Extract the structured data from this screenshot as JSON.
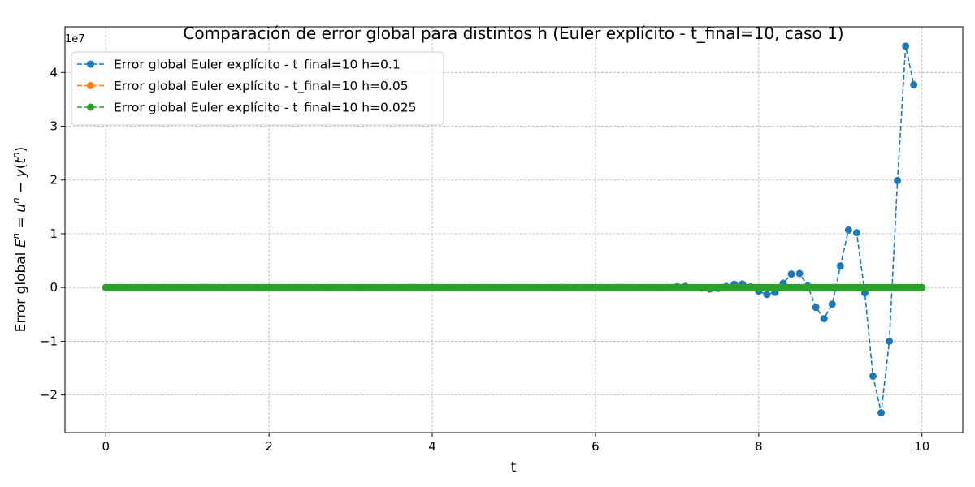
{
  "chart_data": {
    "type": "line",
    "title": "Comparación de error global para distintos h (Euler explícito - t_final=10, caso 1)",
    "xlabel": "t",
    "ylabel": "Error global E^n = u^n − y(t^n)",
    "ylabel_parts": {
      "prefix": "Error global ",
      "E": "E",
      "n": "n",
      "eq": " = ",
      "u": "u",
      "minus": " − ",
      "y": "y",
      "lparen": "(",
      "t": "t",
      "rparen": ")"
    },
    "y_offset_label": "1e7",
    "y_scale": 10000000,
    "xlim": [
      -0.5,
      10.5
    ],
    "ylim": [
      -27000000,
      48500000
    ],
    "x_ticks": [
      0,
      2,
      4,
      6,
      8,
      10
    ],
    "x_tick_labels": [
      "0",
      "2",
      "4",
      "6",
      "8",
      "10"
    ],
    "y_ticks": [
      -20000000,
      -10000000,
      0,
      10000000,
      20000000,
      30000000,
      40000000
    ],
    "y_tick_labels": [
      "−2",
      "−1",
      "0",
      "1",
      "2",
      "3",
      "4"
    ],
    "grid": true,
    "legend_position": "top-left",
    "x_range": [
      0,
      10
    ],
    "series": [
      {
        "name": "Error global Euler explícito - t_final=10 h=0.1",
        "color": "#1f77b4",
        "h": 0.1,
        "x": [
          7.0,
          7.1,
          7.2,
          7.3,
          7.4,
          7.5,
          7.6,
          7.7,
          7.8,
          7.9,
          8.0,
          8.1,
          8.2,
          8.3,
          8.4,
          8.5,
          8.6,
          8.7,
          8.8,
          8.9,
          9.0,
          9.1,
          9.2,
          9.3,
          9.4,
          9.5,
          9.6,
          9.7,
          9.8,
          9.9
        ],
        "y": [
          150000,
          200000,
          0,
          -100000,
          -300000,
          -150000,
          200000,
          600000,
          650000,
          100000,
          -700000,
          -1300000,
          -900000,
          800000,
          2500000,
          2600000,
          300000,
          -3700000,
          -5800000,
          -3100000,
          4000000,
          10700000,
          10200000,
          -1000000,
          -16500000,
          -23300000,
          -10000000,
          19900000,
          44900000,
          37700000
        ]
      },
      {
        "name": "Error global Euler explícito - t_final=10 h=0.05",
        "color": "#ff7f0e",
        "h": 0.05
      },
      {
        "name": "Error global Euler explícito - t_final=10 h=0.025",
        "color": "#2ca02c",
        "h": 0.025
      }
    ]
  }
}
